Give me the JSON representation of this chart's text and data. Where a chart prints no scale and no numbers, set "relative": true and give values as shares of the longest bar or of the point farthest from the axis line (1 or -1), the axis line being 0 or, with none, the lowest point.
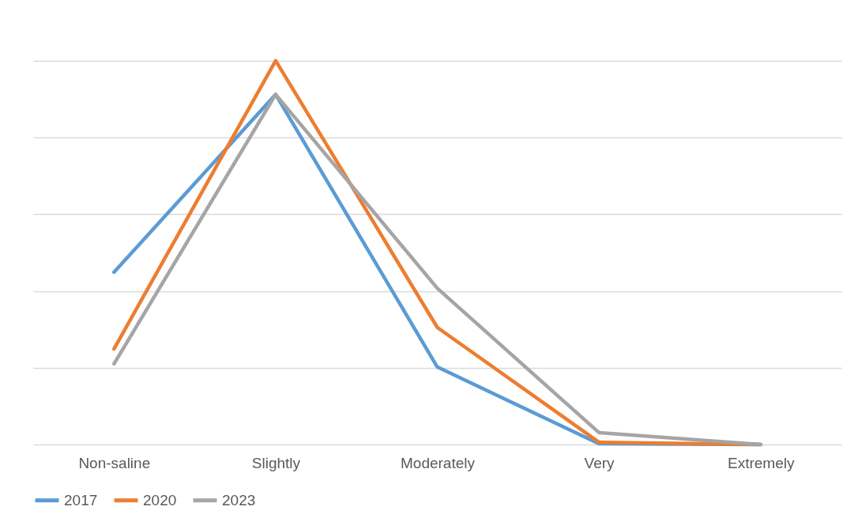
{
  "chart_data": {
    "type": "line",
    "relative": true,
    "categories": [
      "Non-saline",
      "Slightly",
      "Moderately",
      "Very",
      "Extremely"
    ],
    "series": [
      {
        "name": "2017",
        "color": "#5b9bd5",
        "values": [
          0.449,
          0.912,
          0.202,
          0.002,
          0
        ]
      },
      {
        "name": "2020",
        "color": "#ed7d31",
        "values": [
          0.249,
          1,
          0.305,
          0.006,
          0
        ]
      },
      {
        "name": "2023",
        "color": "#a5a5a5",
        "values": [
          0.21,
          0.912,
          0.407,
          0.031,
          0
        ]
      }
    ],
    "grid": "y",
    "legend": "bottom",
    "marker": "none",
    "line_style": "solid"
  }
}
